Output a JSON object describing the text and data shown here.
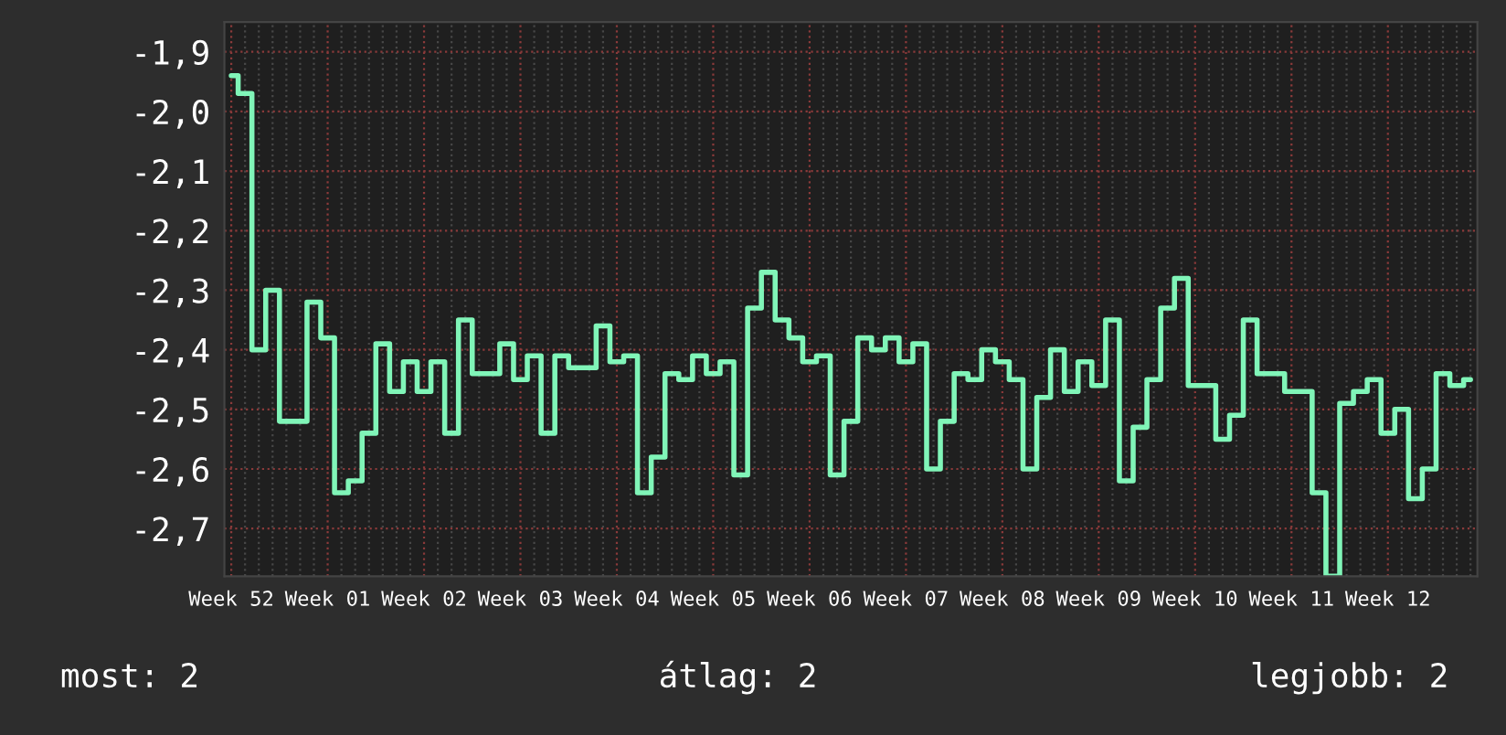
{
  "chart_data": {
    "type": "step",
    "annotations": [
      "most: 2",
      "átlag: 2",
      "legjobb: 2"
    ],
    "categories": [
      "Week 52",
      null,
      null,
      null,
      null,
      null,
      null,
      "Week 01",
      null,
      null,
      null,
      null,
      null,
      null,
      "Week 02",
      null,
      null,
      null,
      null,
      null,
      null,
      "Week 03",
      null,
      null,
      null,
      null,
      null,
      null,
      "Week 04",
      null,
      null,
      null,
      null,
      null,
      null,
      "Week 05",
      null,
      null,
      null,
      null,
      null,
      null,
      "Week 06",
      null,
      null,
      null,
      null,
      null,
      null,
      "Week 07",
      null,
      null,
      null,
      null,
      null,
      null,
      "Week 08",
      null,
      null,
      null,
      null,
      null,
      null,
      "Week 09",
      null,
      null,
      null,
      null,
      null,
      null,
      "Week 10",
      null,
      null,
      null,
      null,
      null,
      null,
      "Week 11",
      null,
      null,
      null,
      null,
      null,
      null,
      "Week 12",
      null,
      null,
      null,
      null,
      null,
      null
    ],
    "series": [
      {
        "color": "#80f5b8",
        "values": [
          -1.94,
          -1.97,
          -2.4,
          -2.3,
          -2.52,
          -2.52,
          -2.32,
          -2.38,
          -2.64,
          -2.62,
          -2.54,
          -2.39,
          -2.47,
          -2.42,
          -2.47,
          -2.42,
          -2.54,
          -2.35,
          -2.44,
          -2.44,
          -2.39,
          -2.45,
          -2.41,
          -2.54,
          -2.41,
          -2.43,
          -2.43,
          -2.36,
          -2.42,
          -2.41,
          -2.64,
          -2.58,
          -2.44,
          -2.45,
          -2.41,
          -2.44,
          -2.42,
          -2.61,
          -2.33,
          -2.27,
          -2.35,
          -2.38,
          -2.42,
          -2.41,
          -2.61,
          -2.52,
          -2.38,
          -2.4,
          -2.38,
          -2.42,
          -2.39,
          -2.6,
          -2.52,
          -2.44,
          -2.45,
          -2.4,
          -2.42,
          -2.45,
          -2.6,
          -2.48,
          -2.4,
          -2.47,
          -2.42,
          -2.46,
          -2.35,
          -2.62,
          -2.53,
          -2.45,
          -2.33,
          -2.28,
          -2.46,
          -2.46,
          -2.55,
          -2.51,
          -2.35,
          -2.44,
          -2.44,
          -2.47,
          -2.47,
          -2.64,
          -2.78,
          -2.49,
          -2.47,
          -2.45,
          -2.54,
          -2.5,
          -2.65,
          -2.6,
          -2.44,
          -2.46,
          -2.45
        ]
      }
    ],
    "ylim": [
      -2.78,
      -1.85
    ],
    "yticks": [
      {
        "value": -2.7,
        "label": "-2,7"
      },
      {
        "value": -2.6,
        "label": "-2,6"
      },
      {
        "value": -2.5,
        "label": "-2,5"
      },
      {
        "value": -2.4,
        "label": "-2,4"
      },
      {
        "value": -2.3,
        "label": "-2,3"
      },
      {
        "value": -2.2,
        "label": "-2,2"
      },
      {
        "value": -2.1,
        "label": "-2,1"
      },
      {
        "value": -2.0,
        "label": "-2,0"
      },
      {
        "value": -1.9,
        "label": "-1,9"
      }
    ],
    "grid": true,
    "line_style": "solid"
  }
}
